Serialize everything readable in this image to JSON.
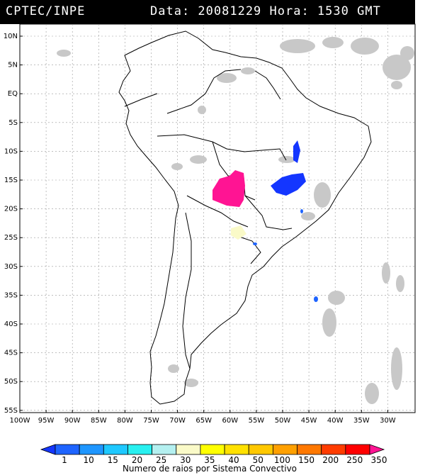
{
  "header": {
    "source": "CPTEC/INPE",
    "datetime": "Data: 20081229 Hora: 1530 GMT"
  },
  "map": {
    "lat_labels": [
      "10N",
      "5N",
      "EQ",
      "5S",
      "10S",
      "15S",
      "20S",
      "25S",
      "30S",
      "35S",
      "40S",
      "45S",
      "50S",
      "55S"
    ],
    "lon_labels": [
      "100W",
      "95W",
      "90W",
      "85W",
      "80W",
      "75W",
      "70W",
      "65W",
      "60W",
      "55W",
      "50W",
      "45W",
      "40W",
      "35W",
      "30W"
    ]
  },
  "legend": {
    "ticks": [
      "1",
      "10",
      "15",
      "20",
      "25",
      "30",
      "35",
      "40",
      "50",
      "100",
      "150",
      "200",
      "250",
      "350"
    ],
    "colors": [
      "#1436ff",
      "#1e64ff",
      "#1e96ff",
      "#1ec8ff",
      "#28f0f0",
      "#b4f0f0",
      "#fafac8",
      "#ffff00",
      "#ffe100",
      "#ffc800",
      "#ffa000",
      "#ff7800",
      "#ff3c00",
      "#ff0000",
      "#ff1493"
    ],
    "caption": "Numero de raios por Sistema Convectivo"
  }
}
